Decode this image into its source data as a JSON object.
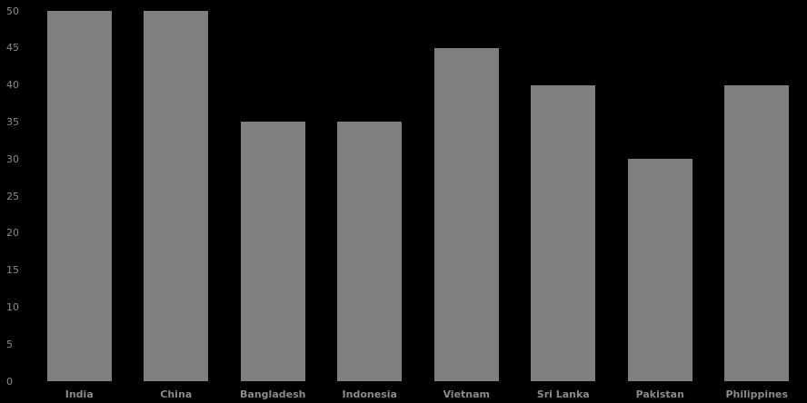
{
  "chart_data": {
    "type": "bar",
    "title": "",
    "xlabel": "",
    "ylabel": "",
    "categories": [
      "India",
      "China",
      "Bangladesh",
      "Indonesia",
      "Vietnam",
      "Sri Lanka",
      "Pakistan",
      "Philippines"
    ],
    "values": [
      50,
      50,
      35,
      35,
      45,
      40,
      30,
      40
    ],
    "ylim": [
      0,
      50
    ],
    "yticks": [
      0,
      5,
      10,
      15,
      20,
      25,
      30,
      35,
      40,
      45,
      50
    ],
    "grid": false,
    "legend": null,
    "colors": {
      "background": "#000000",
      "bar": "#7f7f7f",
      "tick_text": "#8a8a8a"
    }
  }
}
